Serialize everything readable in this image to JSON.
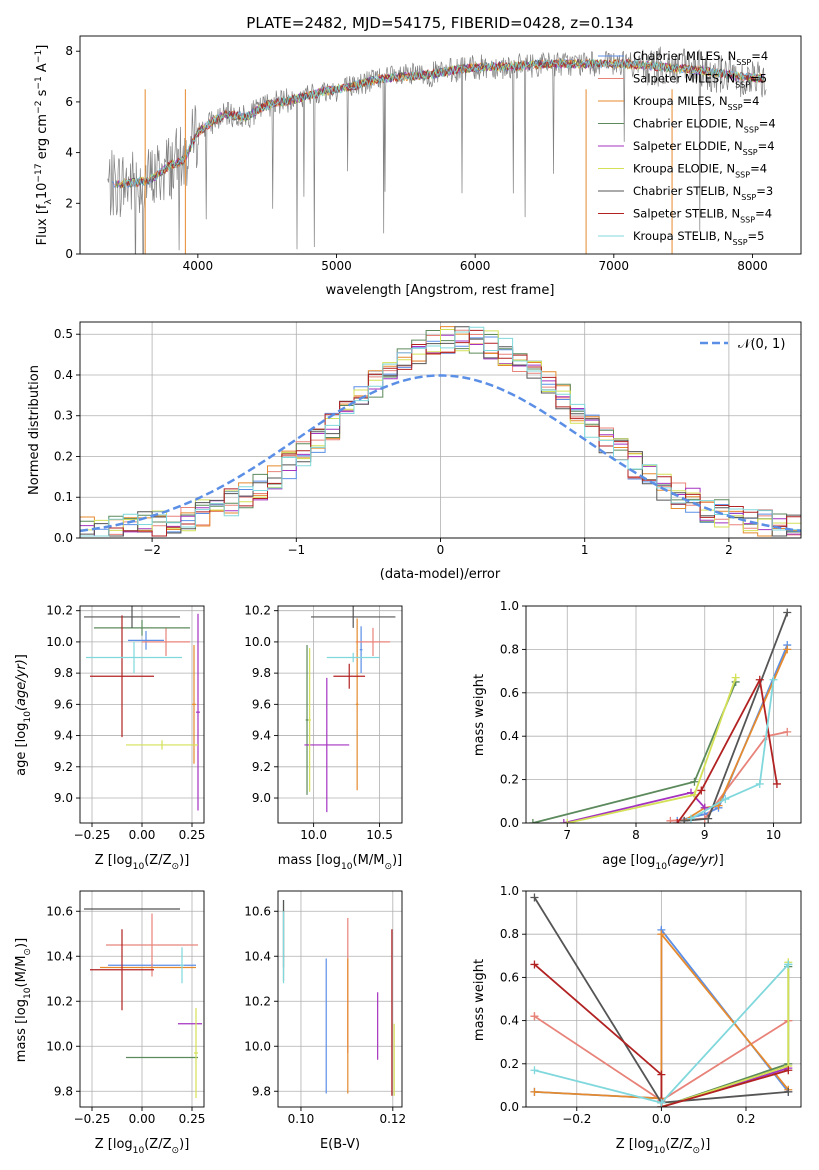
{
  "figure_title": "PLATE=2482, MJD=54175, FIBERID=0428, z=0.134",
  "series": [
    {
      "key": "chab_miles",
      "name": "Chabrier MILES, N",
      "nssp": "=4",
      "color": "#5b8fe6"
    },
    {
      "key": "salp_miles",
      "name": "Salpeter MILES, N",
      "nssp": "=5",
      "color": "#e8837a"
    },
    {
      "key": "krou_miles",
      "name": "Kroupa MILES, N",
      "nssp": "=4",
      "color": "#e58a2e"
    },
    {
      "key": "chab_elodie",
      "name": "Chabrier ELODIE, N",
      "nssp": "=4",
      "color": "#5c8a5c"
    },
    {
      "key": "salp_elodie",
      "name": "Salpeter ELODIE, N",
      "nssp": "=4",
      "color": "#a433c0"
    },
    {
      "key": "krou_elodie",
      "name": "Kroupa ELODIE, N",
      "nssp": "=4",
      "color": "#d4e157"
    },
    {
      "key": "chab_stelib",
      "name": "Chabrier STELIB, N",
      "nssp": "=3",
      "color": "#555555"
    },
    {
      "key": "salp_stelib",
      "name": "Salpeter STELIB, N",
      "nssp": "=4",
      "color": "#b22222"
    },
    {
      "key": "krou_stelib",
      "name": "Kroupa STELIB, N",
      "nssp": "=5",
      "color": "#80d8dc"
    }
  ],
  "nssp_sub": "SSP",
  "chart_data": [
    {
      "id": "spectrum",
      "type": "line",
      "xlabel": "wavelength [Angstrom, rest frame]",
      "ylabel": "Flux [f",
      "ylabel_parts": [
        "Flux [f",
        "λ",
        "10",
        "−17",
        " erg cm",
        "−2",
        " s",
        "−1",
        " A",
        "−1",
        "]"
      ],
      "xlim": [
        3150,
        8350
      ],
      "ylim": [
        0,
        8.6
      ],
      "xticks": [
        4000,
        5000,
        6000,
        7000,
        8000
      ],
      "yticks": [
        0,
        2,
        4,
        6,
        8
      ],
      "grid": false,
      "legend": "right",
      "observed_color": "#808080",
      "continuum": [
        [
          3350,
          2.7
        ],
        [
          3500,
          2.8
        ],
        [
          3650,
          2.9
        ],
        [
          3800,
          3.5
        ],
        [
          3900,
          3.7
        ],
        [
          4000,
          4.8
        ],
        [
          4100,
          5.2
        ],
        [
          4200,
          5.5
        ],
        [
          4350,
          5.4
        ],
        [
          4500,
          5.9
        ],
        [
          4700,
          6.1
        ],
        [
          4900,
          6.4
        ],
        [
          5100,
          6.6
        ],
        [
          5300,
          6.9
        ],
        [
          5500,
          7.0
        ],
        [
          5700,
          7.1
        ],
        [
          5900,
          7.3
        ],
        [
          6100,
          7.4
        ],
        [
          6300,
          7.4
        ],
        [
          6500,
          7.5
        ],
        [
          6700,
          7.5
        ],
        [
          6900,
          7.5
        ],
        [
          7100,
          7.5
        ],
        [
          7300,
          7.4
        ],
        [
          7500,
          7.3
        ],
        [
          7700,
          7.2
        ],
        [
          7900,
          7.0
        ],
        [
          8100,
          6.9
        ]
      ],
      "obs_range": [
        3350,
        8100
      ]
    },
    {
      "id": "residuals",
      "type": "bar",
      "xlabel": "(data-model)/error",
      "ylabel": "Normed distribution",
      "xlim": [
        -2.5,
        2.5
      ],
      "ylim": [
        0,
        0.53
      ],
      "xticks": [
        -2,
        -1,
        0,
        1,
        2
      ],
      "yticks": [
        0.0,
        0.1,
        0.2,
        0.3,
        0.4,
        0.5
      ],
      "grid": true,
      "legend": "top-right",
      "gauss_label": "𝒩(0, 1)",
      "gauss_color": "#5b8fe6",
      "bin_width": 0.1
    },
    {
      "id": "age_vs_Z",
      "type": "scatter",
      "xlabel": "Z [log",
      "ylabel": "age  [log",
      "xlim": [
        -0.31,
        0.31
      ],
      "ylim": [
        8.84,
        10.23
      ],
      "xticks": [
        -0.25,
        0.0,
        0.25
      ],
      "yticks": [
        9.0,
        9.2,
        9.4,
        9.6,
        9.8,
        10.0,
        10.2
      ],
      "grid": true,
      "points": [
        {
          "s": "chab_miles",
          "x": 0.02,
          "y": 10.01,
          "xe": 0.09,
          "ye": 0.06
        },
        {
          "s": "salp_miles",
          "x": 0.12,
          "y": 10.0,
          "xe": 0.12,
          "ye": 0.09
        },
        {
          "s": "krou_miles",
          "x": 0.26,
          "y": 9.6,
          "xe": 0.01,
          "ye": 0.38
        },
        {
          "s": "chab_elodie",
          "x": 0.0,
          "y": 10.09,
          "xe": 0.24,
          "ye": 0.05
        },
        {
          "s": "salp_elodie",
          "x": 0.28,
          "y": 9.55,
          "xe": 0.01,
          "ye": 0.63
        },
        {
          "s": "krou_elodie",
          "x": 0.1,
          "y": 9.34,
          "xe": 0.18,
          "ye": 0.03
        },
        {
          "s": "chab_stelib",
          "x": -0.05,
          "y": 10.16,
          "xe": 0.24,
          "ye": 0.07
        },
        {
          "s": "salp_stelib",
          "x": -0.1,
          "y": 9.78,
          "xe": 0.16,
          "ye": 0.39
        },
        {
          "s": "krou_stelib",
          "x": -0.04,
          "y": 9.9,
          "xe": 0.24,
          "ye": 0.1
        }
      ]
    },
    {
      "id": "age_vs_mass",
      "type": "scatter",
      "xlabel": "mass [log",
      "ylabel": "",
      "xlim": [
        9.73,
        10.67
      ],
      "ylim": [
        8.84,
        10.23
      ],
      "xticks": [
        10.0,
        10.5
      ],
      "yticks": [
        9.0,
        9.2,
        9.4,
        9.6,
        9.8,
        10.0,
        10.2
      ],
      "grid": true,
      "points": [
        {
          "s": "chab_miles",
          "x": 10.36,
          "y": 9.95,
          "xe": 0.01,
          "ye": 0.15
        },
        {
          "s": "salp_miles",
          "x": 10.45,
          "y": 10.0,
          "xe": 0.13,
          "ye": 0.09
        },
        {
          "s": "krou_miles",
          "x": 10.33,
          "y": 9.6,
          "xe": 0.01,
          "ye": 0.55
        },
        {
          "s": "chab_elodie",
          "x": 9.95,
          "y": 9.5,
          "xe": 0.01,
          "ye": 0.48
        },
        {
          "s": "salp_elodie",
          "x": 10.1,
          "y": 9.34,
          "xe": 0.17,
          "ye": 0.43
        },
        {
          "s": "krou_elodie",
          "x": 9.97,
          "y": 9.5,
          "xe": 0.01,
          "ye": 0.46
        },
        {
          "s": "chab_stelib",
          "x": 10.3,
          "y": 10.16,
          "xe": 0.32,
          "ye": 0.07
        },
        {
          "s": "salp_stelib",
          "x": 10.27,
          "y": 9.78,
          "xe": 0.12,
          "ye": 0.08
        },
        {
          "s": "krou_stelib",
          "x": 10.3,
          "y": 9.9,
          "xe": 0.2,
          "ye": 0.03
        }
      ]
    },
    {
      "id": "weights_vs_age",
      "type": "line",
      "xlabel": "age  [log",
      "ylabel": "mass weight",
      "xlim": [
        6.4,
        10.4
      ],
      "ylim": [
        0,
        1.0
      ],
      "xticks": [
        7,
        8,
        9,
        10
      ],
      "yticks": [
        0.0,
        0.2,
        0.4,
        0.6,
        0.8,
        1.0
      ],
      "grid": true,
      "lines": [
        {
          "s": "chab_miles",
          "x": [
            8.6,
            9.0,
            9.2,
            10.2
          ],
          "y": [
            0.01,
            0.04,
            0.07,
            0.82
          ]
        },
        {
          "s": "salp_miles",
          "x": [
            8.5,
            9.0,
            9.9,
            10.2
          ],
          "y": [
            0.01,
            0.02,
            0.4,
            0.42
          ]
        },
        {
          "s": "krou_miles",
          "x": [
            8.7,
            9.0,
            9.2,
            10.2
          ],
          "y": [
            0.01,
            0.07,
            0.08,
            0.8
          ]
        },
        {
          "s": "chab_elodie",
          "x": [
            6.5,
            8.85,
            9.45
          ],
          "y": [
            0.0,
            0.19,
            0.65
          ]
        },
        {
          "s": "salp_elodie",
          "x": [
            6.95,
            8.8,
            9.0
          ],
          "y": [
            0.0,
            0.14,
            0.07
          ]
        },
        {
          "s": "krou_elodie",
          "x": [
            7.0,
            8.85,
            9.45
          ],
          "y": [
            0.0,
            0.13,
            0.67
          ]
        },
        {
          "s": "chab_stelib",
          "x": [
            8.7,
            9.05,
            10.2
          ],
          "y": [
            0.01,
            0.02,
            0.97
          ]
        },
        {
          "s": "salp_stelib",
          "x": [
            8.6,
            8.95,
            9.8,
            10.05
          ],
          "y": [
            0.0,
            0.15,
            0.66,
            0.18
          ]
        },
        {
          "s": "krou_stelib",
          "x": [
            8.8,
            9.3,
            9.8,
            10.0
          ],
          "y": [
            0.02,
            0.11,
            0.18,
            0.66
          ]
        }
      ]
    },
    {
      "id": "mass_vs_Z",
      "type": "scatter",
      "xlabel": "Z [log",
      "ylabel": "mass [log",
      "xlim": [
        -0.31,
        0.31
      ],
      "ylim": [
        9.73,
        10.69
      ],
      "xticks": [
        -0.25,
        0.0,
        0.25
      ],
      "yticks": [
        9.8,
        10.0,
        10.2,
        10.4,
        10.6
      ],
      "grid": true,
      "points": [
        {
          "s": "chab_miles",
          "x": 0.05,
          "y": 10.36,
          "xe": 0.22,
          "ye": 0.01
        },
        {
          "s": "salp_miles",
          "x": 0.05,
          "y": 10.45,
          "xe": 0.23,
          "ye": 0.14
        },
        {
          "s": "krou_miles",
          "x": 0.03,
          "y": 10.35,
          "xe": 0.24,
          "ye": 0.0
        },
        {
          "s": "chab_elodie",
          "x": 0.1,
          "y": 9.95,
          "xe": 0.18,
          "ye": 0.0
        },
        {
          "s": "salp_elodie",
          "x": 0.24,
          "y": 10.1,
          "xe": 0.06,
          "ye": 0.0
        },
        {
          "s": "krou_elodie",
          "x": 0.27,
          "y": 9.97,
          "xe": 0.01,
          "ye": 0.2
        },
        {
          "s": "chab_stelib",
          "x": -0.05,
          "y": 10.61,
          "xe": 0.24,
          "ye": 0.0
        },
        {
          "s": "salp_stelib",
          "x": -0.1,
          "y": 10.34,
          "xe": 0.16,
          "ye": 0.18
        },
        {
          "s": "krou_stelib",
          "x": 0.2,
          "y": 10.36,
          "xe": 0.01,
          "ye": 0.08
        }
      ]
    },
    {
      "id": "mass_vs_ebv",
      "type": "scatter",
      "xlabel": "E(B-V)",
      "ylabel": "",
      "xlim": [
        0.095,
        0.122
      ],
      "ylim": [
        9.73,
        10.69
      ],
      "xticks": [
        0.1,
        0.12
      ],
      "yticks": [
        9.8,
        10.0,
        10.2,
        10.4,
        10.6
      ],
      "grid": true,
      "points": [
        {
          "s": "chab_miles",
          "x": 0.1055,
          "y": 10.09,
          "xe": 0.0,
          "ye": 0.3
        },
        {
          "s": "salp_miles",
          "x": 0.1102,
          "y": 10.27,
          "xe": 0.0,
          "ye": 0.3
        },
        {
          "s": "krou_miles",
          "x": 0.1102,
          "y": 10.09,
          "xe": 0.0,
          "ye": 0.3
        },
        {
          "s": "chab_elodie",
          "x": 0.0962,
          "y": 10.47,
          "xe": 0.0,
          "ye": 0.18
        },
        {
          "s": "salp_elodie",
          "x": 0.1167,
          "y": 10.09,
          "xe": 0.0,
          "ye": 0.15
        },
        {
          "s": "krou_elodie",
          "x": 0.1203,
          "y": 9.94,
          "xe": 0.0,
          "ye": 0.16
        },
        {
          "s": "chab_stelib",
          "x": 0.0962,
          "y": 10.5,
          "xe": 0.0,
          "ye": 0.15
        },
        {
          "s": "salp_stelib",
          "x": 0.1198,
          "y": 10.15,
          "xe": 0.0,
          "ye": 0.37
        },
        {
          "s": "krou_stelib",
          "x": 0.0962,
          "y": 10.44,
          "xe": 0.0,
          "ye": 0.16
        }
      ]
    },
    {
      "id": "weights_vs_Z",
      "type": "line",
      "xlabel": "Z [log",
      "ylabel": "mass weight",
      "xlim": [
        -0.32,
        0.33
      ],
      "ylim": [
        0,
        1.0
      ],
      "xticks": [
        -0.2,
        0.0,
        0.2
      ],
      "yticks": [
        0.0,
        0.2,
        0.4,
        0.6,
        0.8,
        1.0
      ],
      "grid": true,
      "lines": [
        {
          "s": "chab_miles",
          "x": [
            -0.3,
            0.0,
            0.0,
            0.3
          ],
          "y": [
            0.07,
            0.04,
            0.82,
            0.07
          ]
        },
        {
          "s": "salp_miles",
          "x": [
            -0.3,
            -0.3,
            0.0,
            0.3,
            0.3
          ],
          "y": [
            0.42,
            0.42,
            0.03,
            0.4,
            0.4
          ]
        },
        {
          "s": "krou_miles",
          "x": [
            -0.3,
            0.0,
            0.0,
            0.3
          ],
          "y": [
            0.07,
            0.04,
            0.8,
            0.08
          ]
        },
        {
          "s": "chab_elodie",
          "x": [
            0.0,
            0.3,
            0.3
          ],
          "y": [
            0.0,
            0.2,
            0.65
          ]
        },
        {
          "s": "salp_elodie",
          "x": [
            0.0,
            0.3
          ],
          "y": [
            0.0,
            0.18
          ]
        },
        {
          "s": "krou_elodie",
          "x": [
            0.0,
            0.3,
            0.3
          ],
          "y": [
            0.0,
            0.19,
            0.67
          ]
        },
        {
          "s": "chab_stelib",
          "x": [
            -0.3,
            0.0,
            0.3
          ],
          "y": [
            0.97,
            0.02,
            0.07
          ]
        },
        {
          "s": "salp_stelib",
          "x": [
            -0.3,
            0.0,
            0.0,
            0.3
          ],
          "y": [
            0.66,
            0.15,
            0.0,
            0.17
          ]
        },
        {
          "s": "krou_stelib",
          "x": [
            -0.3,
            0.0,
            0.3,
            0.3
          ],
          "y": [
            0.17,
            0.02,
            0.66,
            0.66
          ]
        }
      ]
    }
  ],
  "label_bits": {
    "log10": "10",
    "Z_sub": "(Z/Z",
    "sun": "⊙",
    "age_inner": "(age/yr)",
    "mass_inner": "(M/M",
    "close": ")]"
  }
}
